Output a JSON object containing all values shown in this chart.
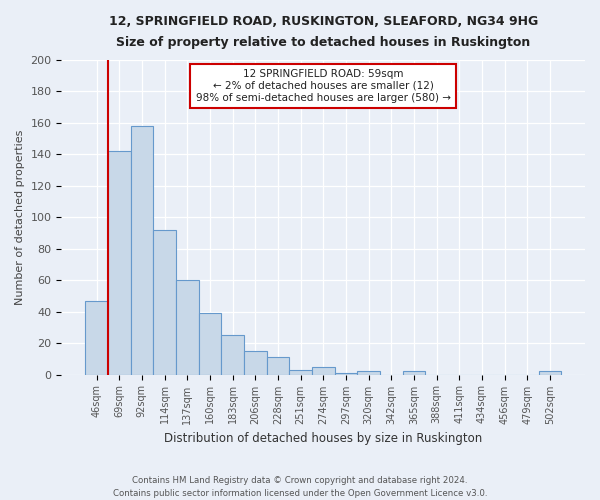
{
  "title1": "12, SPRINGFIELD ROAD, RUSKINGTON, SLEAFORD, NG34 9HG",
  "title2": "Size of property relative to detached houses in Ruskington",
  "xlabel": "Distribution of detached houses by size in Ruskington",
  "ylabel": "Number of detached properties",
  "bar_labels": [
    "46sqm",
    "69sqm",
    "92sqm",
    "114sqm",
    "137sqm",
    "160sqm",
    "183sqm",
    "206sqm",
    "228sqm",
    "251sqm",
    "274sqm",
    "297sqm",
    "320sqm",
    "342sqm",
    "365sqm",
    "388sqm",
    "411sqm",
    "434sqm",
    "456sqm",
    "479sqm",
    "502sqm"
  ],
  "bar_values": [
    47,
    142,
    158,
    92,
    60,
    39,
    25,
    15,
    11,
    3,
    5,
    1,
    2,
    0,
    2,
    0,
    0,
    0,
    0,
    0,
    2
  ],
  "bar_color": "#c8d8e8",
  "bar_edge_color": "#6699cc",
  "highlight_line_color": "#cc0000",
  "annotation_text": "12 SPRINGFIELD ROAD: 59sqm\n← 2% of detached houses are smaller (12)\n98% of semi-detached houses are larger (580) →",
  "annotation_box_color": "#ffffff",
  "annotation_border_color": "#cc0000",
  "ylim": [
    0,
    200
  ],
  "yticks": [
    0,
    20,
    40,
    60,
    80,
    100,
    120,
    140,
    160,
    180,
    200
  ],
  "footer": "Contains HM Land Registry data © Crown copyright and database right 2024.\nContains public sector information licensed under the Open Government Licence v3.0.",
  "bg_color": "#eaeff7",
  "plot_bg_color": "#eaeff7",
  "grid_color": "#ffffff"
}
